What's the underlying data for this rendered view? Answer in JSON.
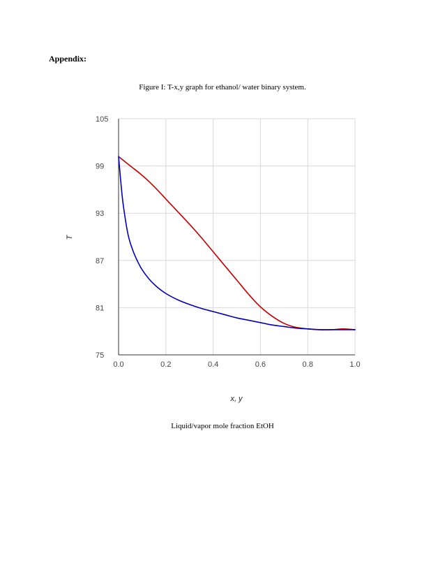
{
  "page": {
    "heading": "Appendix:",
    "figure_caption": "Figure I: T-x,y graph for ethanol/ water binary system.",
    "subcaption": "Liquid/vapor mole fraction EtOH"
  },
  "chart_data": {
    "type": "line",
    "xlabel": "x, y",
    "ylabel": "T",
    "xlim": [
      0.0,
      1.0
    ],
    "ylim": [
      75,
      105
    ],
    "xticks": [
      "0.0",
      "0.2",
      "0.4",
      "0.6",
      "0.8",
      "1.0"
    ],
    "yticks": [
      "75",
      "81",
      "87",
      "93",
      "99",
      "105"
    ],
    "grid": true,
    "legend": "none",
    "series": [
      {
        "color": "#c00000",
        "x": [
          0.0,
          0.05,
          0.1,
          0.15,
          0.2,
          0.25,
          0.3,
          0.35,
          0.4,
          0.45,
          0.5,
          0.55,
          0.6,
          0.65,
          0.7,
          0.75,
          0.8,
          0.85,
          0.9,
          0.95,
          1.0
        ],
        "y": [
          100.2,
          99.0,
          97.8,
          96.4,
          94.8,
          93.2,
          91.6,
          89.9,
          88.1,
          86.3,
          84.5,
          82.7,
          81.1,
          79.9,
          79.0,
          78.5,
          78.3,
          78.2,
          78.2,
          78.3,
          78.2
        ]
      },
      {
        "color": "#0000b4",
        "x": [
          0.0,
          0.01,
          0.02,
          0.04,
          0.06,
          0.08,
          0.1,
          0.13,
          0.16,
          0.2,
          0.25,
          0.3,
          0.35,
          0.4,
          0.45,
          0.5,
          0.55,
          0.6,
          0.65,
          0.7,
          0.75,
          0.8,
          0.85,
          0.9,
          0.95,
          1.0
        ],
        "y": [
          100.2,
          96.8,
          94.0,
          90.3,
          88.3,
          86.9,
          85.8,
          84.6,
          83.7,
          82.8,
          82.0,
          81.4,
          80.9,
          80.5,
          80.1,
          79.7,
          79.4,
          79.1,
          78.8,
          78.6,
          78.4,
          78.3,
          78.2,
          78.2,
          78.2,
          78.2
        ]
      }
    ]
  }
}
